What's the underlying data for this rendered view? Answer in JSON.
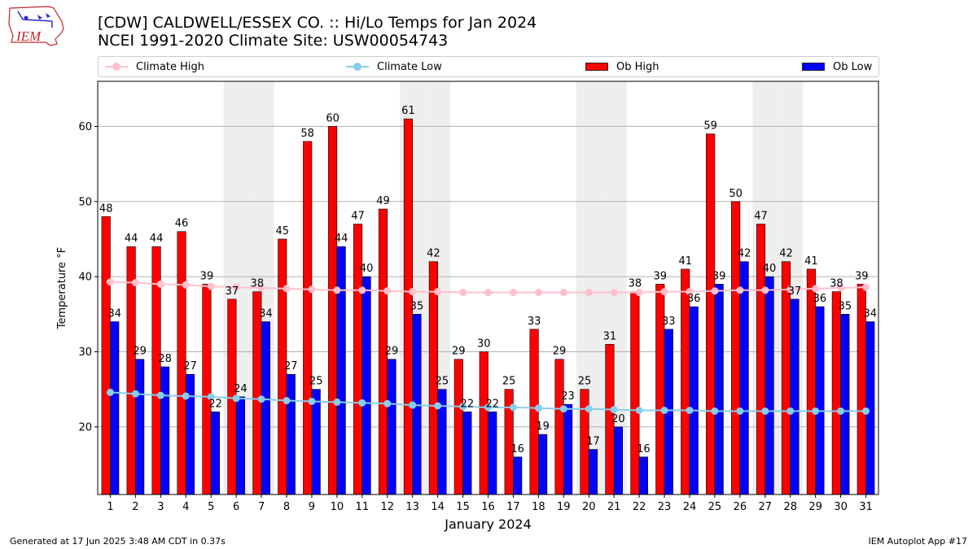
{
  "header": {
    "title_line1": "[CDW] CALDWELL/ESSEX CO. :: Hi/Lo Temps for Jan 2024",
    "title_line2": "NCEI 1991-2020 Climate Site: USW00054743"
  },
  "logo": {
    "text": "IEM"
  },
  "legend": {
    "climate_high": "Climate High",
    "climate_low": "Climate Low",
    "ob_high": "Ob High",
    "ob_low": "Ob Low"
  },
  "footer": {
    "left": "Generated at 17 Jun 2025 3:48 AM CDT in 0.37s",
    "right": "IEM Autoplot App #17"
  },
  "colors": {
    "ob_high": "#ff0000",
    "ob_low": "#0000ff",
    "climate_high": "#ffc0cb",
    "climate_low": "#87ceeb",
    "weekend_shade": "#eeeeee",
    "grid": "#b0b0b0"
  },
  "chart_data": {
    "type": "bar",
    "title": "[CDW] CALDWELL/ESSEX CO. :: Hi/Lo Temps for Jan 2024",
    "xlabel": "January 2024",
    "ylabel": "Temperature °F",
    "ylim": [
      11,
      66
    ],
    "yticks": [
      20,
      30,
      40,
      50,
      60
    ],
    "grid": true,
    "categories": [
      1,
      2,
      3,
      4,
      5,
      6,
      7,
      8,
      9,
      10,
      11,
      12,
      13,
      14,
      15,
      16,
      17,
      18,
      19,
      20,
      21,
      22,
      23,
      24,
      25,
      26,
      27,
      28,
      29,
      30,
      31
    ],
    "shaded_days": [
      6,
      7,
      13,
      14,
      20,
      21,
      27,
      28
    ],
    "series": [
      {
        "name": "Ob High",
        "kind": "bar",
        "values": [
          48,
          44,
          44,
          46,
          39,
          37,
          38,
          45,
          58,
          60,
          47,
          49,
          61,
          42,
          29,
          30,
          25,
          33,
          29,
          25,
          31,
          38,
          39,
          41,
          59,
          50,
          47,
          42,
          41,
          38,
          39
        ]
      },
      {
        "name": "Ob Low",
        "kind": "bar",
        "values": [
          34,
          29,
          28,
          27,
          22,
          24,
          34,
          27,
          25,
          44,
          40,
          29,
          35,
          25,
          22,
          22,
          16,
          19,
          23,
          17,
          20,
          16,
          33,
          36,
          39,
          42,
          40,
          37,
          36,
          35,
          34
        ]
      },
      {
        "name": "Climate High",
        "kind": "line",
        "values": [
          39.3,
          39.2,
          39.0,
          38.9,
          38.7,
          38.6,
          38.5,
          38.4,
          38.3,
          38.2,
          38.2,
          38.1,
          38.0,
          38.0,
          37.9,
          37.9,
          37.9,
          37.9,
          37.9,
          37.9,
          37.9,
          37.9,
          38.0,
          38.0,
          38.1,
          38.2,
          38.2,
          38.3,
          38.4,
          38.5,
          38.6
        ]
      },
      {
        "name": "Climate Low",
        "kind": "line",
        "values": [
          24.6,
          24.4,
          24.2,
          24.1,
          24.0,
          23.8,
          23.7,
          23.5,
          23.4,
          23.3,
          23.2,
          23.1,
          22.9,
          22.8,
          22.7,
          22.6,
          22.6,
          22.5,
          22.4,
          22.4,
          22.3,
          22.2,
          22.2,
          22.2,
          22.1,
          22.1,
          22.1,
          22.1,
          22.1,
          22.1,
          22.1
        ]
      }
    ]
  }
}
